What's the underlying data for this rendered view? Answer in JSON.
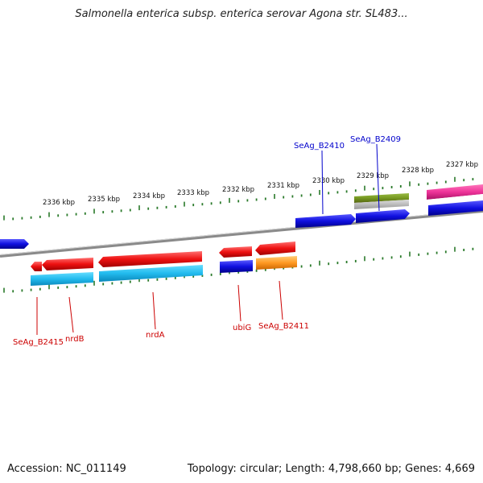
{
  "title": "Salmonella enterica subsp. enterica serovar Agona str. SL483...",
  "footer": {
    "accession": "Accession: NC_011149",
    "summary": "Topology: circular; Length: 4,798,660 bp; Genes: 4,669"
  },
  "scale_labels": [
    {
      "text": "2336 kbp"
    },
    {
      "text": "2335 kbp"
    },
    {
      "text": "2334 kbp"
    },
    {
      "text": "2333 kbp"
    },
    {
      "text": "2332 kbp"
    },
    {
      "text": "2331 kbp"
    },
    {
      "text": "2330 kbp"
    },
    {
      "text": "2329 kbp"
    },
    {
      "text": "2328 kbp"
    },
    {
      "text": "2327 kbp"
    }
  ],
  "gene_labels": [
    {
      "text": "SeAg_B2410",
      "color": "#0000cc"
    },
    {
      "text": "SeAg_B2409",
      "color": "#0000cc"
    },
    {
      "text": "SeAg_B2415",
      "color": "#cc0000"
    },
    {
      "text": "nrdB",
      "color": "#cc0000"
    },
    {
      "text": "nrdA",
      "color": "#cc0000"
    },
    {
      "text": "ubiG",
      "color": "#cc0000"
    },
    {
      "text": "SeAg_B2411",
      "color": "#cc0000"
    }
  ],
  "colors": {
    "forward_cds": "#1010e0",
    "reverse_cds": "#ee1111",
    "feature_cyan": "#22bbee",
    "feature_orange": "#ff9922",
    "feature_olive": "#779922",
    "feature_pink": "#ee3399",
    "backbone": "#888888",
    "ticks": "#2a7a2a"
  }
}
